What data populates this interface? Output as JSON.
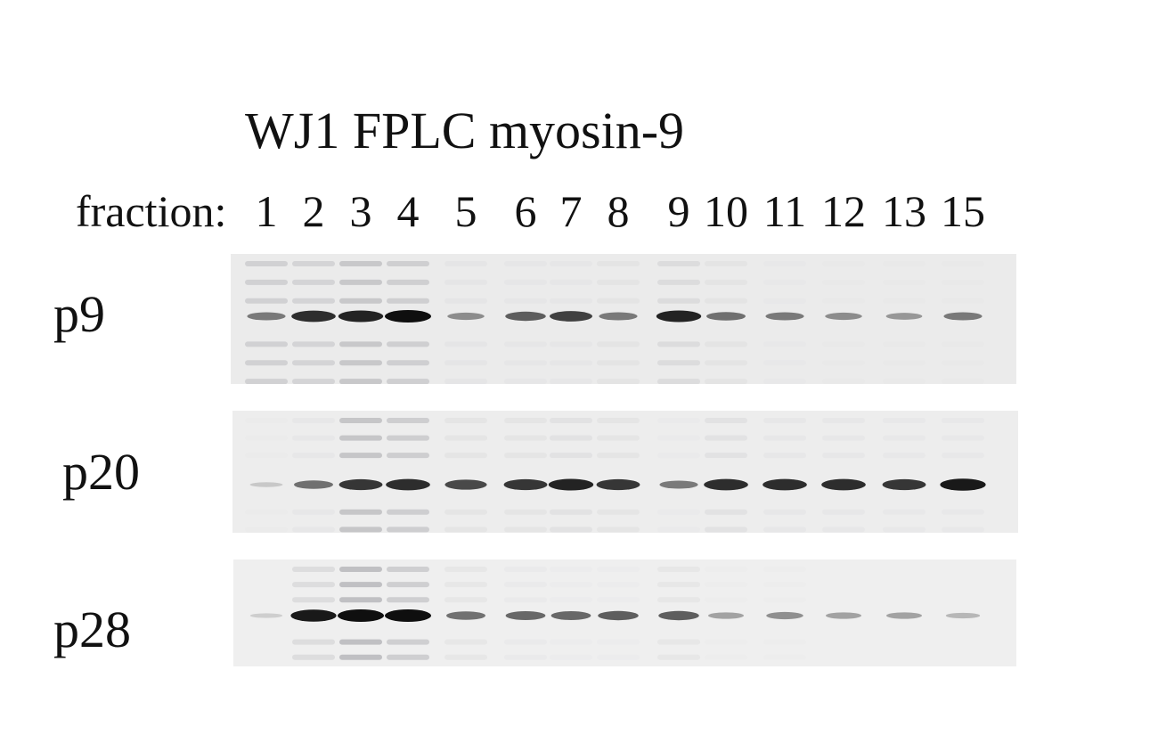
{
  "figure": {
    "title": "WJ1 FPLC myosin-9",
    "fraction_label": "fraction:",
    "fractions": [
      "1",
      "2",
      "3",
      "4",
      "5",
      "6",
      "7",
      "8",
      "9",
      "10",
      "11",
      "12",
      "13",
      "15"
    ]
  },
  "blots": [
    {
      "label": "p9",
      "band_intensity": [
        0.45,
        0.85,
        0.9,
        1.0,
        0.35,
        0.6,
        0.75,
        0.45,
        0.9,
        0.5,
        0.45,
        0.35,
        0.3,
        0.45
      ],
      "smear": [
        0.5,
        0.45,
        0.7,
        0.55,
        0.1,
        0.08,
        0.08,
        0.15,
        0.3,
        0.15,
        0.05,
        0.03,
        0.03,
        0.03
      ]
    },
    {
      "label": "p20",
      "band_intensity": [
        0.05,
        0.5,
        0.8,
        0.85,
        0.7,
        0.8,
        0.9,
        0.8,
        0.45,
        0.85,
        0.85,
        0.85,
        0.8,
        0.95
      ],
      "smear": [
        0.03,
        0.1,
        0.75,
        0.6,
        0.15,
        0.15,
        0.2,
        0.15,
        0.05,
        0.2,
        0.1,
        0.1,
        0.08,
        0.08
      ]
    },
    {
      "label": "p28",
      "band_intensity": [
        0.03,
        0.95,
        1.0,
        1.0,
        0.5,
        0.55,
        0.55,
        0.6,
        0.6,
        0.25,
        0.35,
        0.25,
        0.25,
        0.15
      ],
      "smear": [
        0.02,
        0.35,
        0.9,
        0.6,
        0.15,
        0.08,
        0.05,
        0.05,
        0.15,
        0.03,
        0.03,
        0.02,
        0.02,
        0.02
      ]
    }
  ]
}
